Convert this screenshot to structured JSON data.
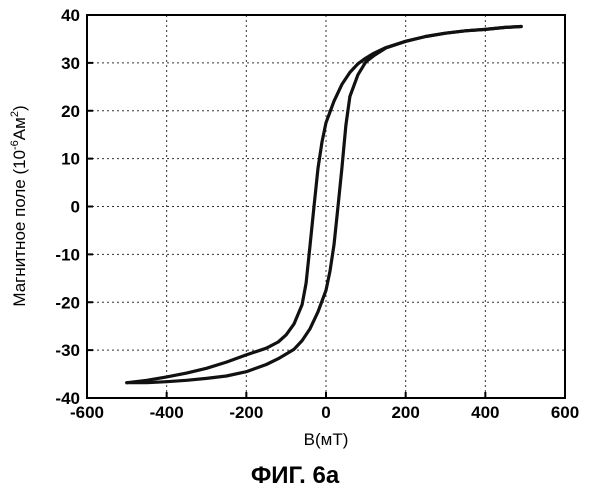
{
  "figure_caption": "ФИГ. 6а",
  "chart_data": {
    "type": "line",
    "title": "",
    "xlabel": "B(мТ)",
    "ylabel": {
      "prefix": "Магнитное поле (10",
      "exp1": "-6",
      "mid": "Ам",
      "exp2": "2",
      "suffix": ")"
    },
    "xlim": [
      -600,
      600
    ],
    "ylim": [
      -40,
      40
    ],
    "x_ticks": [
      -600,
      -400,
      -200,
      0,
      200,
      400,
      600
    ],
    "y_ticks": [
      -40,
      -30,
      -20,
      -10,
      0,
      10,
      20,
      30,
      40
    ],
    "x_tick_labels": [
      "-600",
      "-400",
      "-200",
      "0",
      "200",
      "400",
      "600"
    ],
    "y_tick_labels": [
      "-40",
      "-30",
      "-20",
      "-10",
      "0",
      "10",
      "20",
      "30",
      "40"
    ],
    "grid": true,
    "grid_style": "dotted",
    "line_color": "#111111",
    "series": [
      {
        "x": [
          -500,
          -450,
          -400,
          -350,
          -300,
          -250,
          -200,
          -150,
          -120,
          -100,
          -80,
          -60,
          -50,
          -40,
          -30,
          -20,
          -10,
          0,
          20,
          40,
          60,
          80,
          100,
          120,
          150,
          200,
          250,
          300,
          350,
          400,
          450,
          490
        ],
        "y": [
          -36.8,
          -36.3,
          -35.6,
          -34.8,
          -33.8,
          -32.5,
          -31.0,
          -29.6,
          -28.3,
          -26.8,
          -24.5,
          -20.5,
          -16.0,
          -8.0,
          0.0,
          8.0,
          13.5,
          17.5,
          22.0,
          25.5,
          28.0,
          29.8,
          31.0,
          32.0,
          33.2,
          34.5,
          35.5,
          36.2,
          36.7,
          37.0,
          37.4,
          37.6
        ]
      },
      {
        "x": [
          490,
          450,
          400,
          350,
          300,
          250,
          200,
          150,
          120,
          100,
          80,
          60,
          50,
          40,
          30,
          20,
          10,
          0,
          -20,
          -40,
          -60,
          -80,
          -100,
          -120,
          -150,
          -200,
          -250,
          -300,
          -350,
          -400,
          -450,
          -500
        ],
        "y": [
          37.6,
          37.4,
          37.0,
          36.7,
          36.2,
          35.5,
          34.5,
          33.1,
          31.5,
          30.2,
          27.5,
          23.0,
          17.0,
          8.0,
          0.0,
          -8.0,
          -13.5,
          -17.5,
          -22.0,
          -25.5,
          -28.0,
          -29.8,
          -30.8,
          -31.8,
          -33.0,
          -34.5,
          -35.4,
          -35.9,
          -36.3,
          -36.6,
          -36.8,
          -36.8
        ]
      }
    ]
  }
}
